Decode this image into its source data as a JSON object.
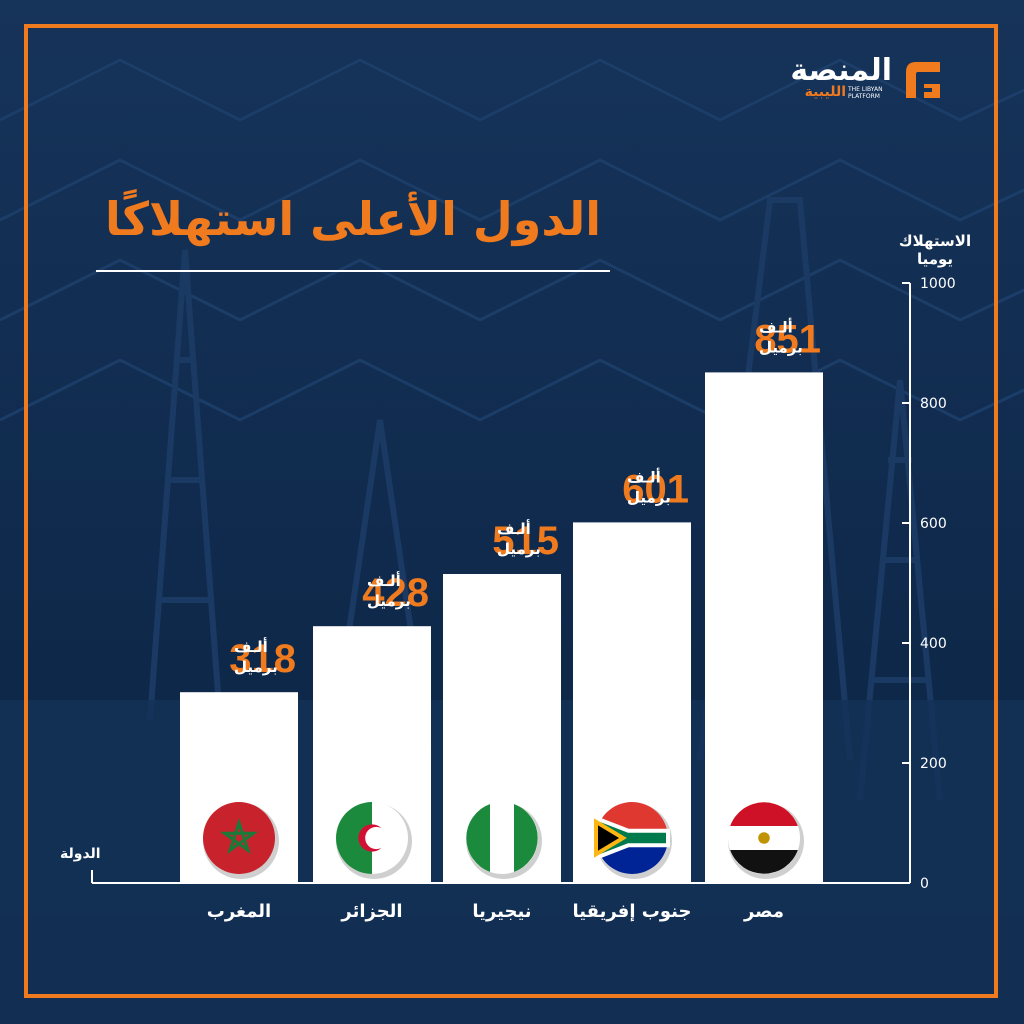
{
  "logo": {
    "main_text": "المنصة",
    "sub_text": "الليبية",
    "en_text": "THE LIBYAN PLATFORM"
  },
  "title": "الدول الأعلى استهلاكًا",
  "colors": {
    "background": "#0f2847",
    "accent": "#f07a1e",
    "bar": "#ffffff",
    "text": "#ffffff"
  },
  "chart_data": {
    "type": "bar",
    "ylabel": "الاستهلاك يوميا",
    "xlabel": "الدولة",
    "ylim": [
      0,
      1000
    ],
    "yticks": [
      0,
      200,
      400,
      600,
      800,
      1000
    ],
    "categories": [
      "المغرب",
      "الجزائر",
      "نيجيريا",
      "جنوب إفريقيا",
      "مصر"
    ],
    "values": [
      318,
      428,
      515,
      601,
      851
    ],
    "unit_top": "ألـف",
    "unit_bottom": "برميل",
    "flags": [
      "morocco-flag-icon",
      "algeria-flag-icon",
      "nigeria-flag-icon",
      "south-africa-flag-icon",
      "egypt-flag-icon"
    ]
  }
}
